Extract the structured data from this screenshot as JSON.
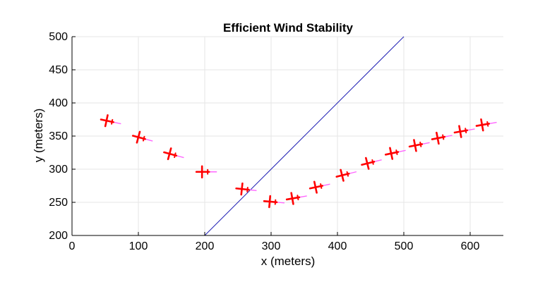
{
  "chart_data": {
    "type": "scatter",
    "title": "Efficient Wind Stability",
    "xlabel": "x (meters)",
    "ylabel": "y (meters)",
    "xlim": [
      0,
      650
    ],
    "ylim": [
      200,
      500
    ],
    "xticks": [
      0,
      100,
      200,
      300,
      400,
      500,
      600
    ],
    "yticks": [
      200,
      250,
      300,
      350,
      400,
      450,
      500
    ],
    "grid": true,
    "reference_line": {
      "name": "boundary-line",
      "x": [
        200,
        500
      ],
      "y": [
        200,
        500
      ],
      "color": "#1f1fb4"
    },
    "series": [
      {
        "name": "aircraft",
        "marker": "plane",
        "color": "#ff0000",
        "trail_color": "#ff66ff",
        "points": [
          {
            "x": 53,
            "y": 373,
            "angle": -12
          },
          {
            "x": 101,
            "y": 348,
            "angle": -15
          },
          {
            "x": 148,
            "y": 323,
            "angle": -15
          },
          {
            "x": 197,
            "y": 296,
            "angle": 0
          },
          {
            "x": 257,
            "y": 270,
            "angle": -6
          },
          {
            "x": 299,
            "y": 251,
            "angle": -5
          },
          {
            "x": 333,
            "y": 256,
            "angle": 10
          },
          {
            "x": 368,
            "y": 273,
            "angle": 12
          },
          {
            "x": 408,
            "y": 291,
            "angle": 14
          },
          {
            "x": 446,
            "y": 309,
            "angle": 14
          },
          {
            "x": 482,
            "y": 324,
            "angle": 12
          },
          {
            "x": 518,
            "y": 336,
            "angle": 11
          },
          {
            "x": 552,
            "y": 347,
            "angle": 11
          },
          {
            "x": 586,
            "y": 357,
            "angle": 10
          },
          {
            "x": 619,
            "y": 367,
            "angle": 10
          }
        ]
      }
    ]
  }
}
